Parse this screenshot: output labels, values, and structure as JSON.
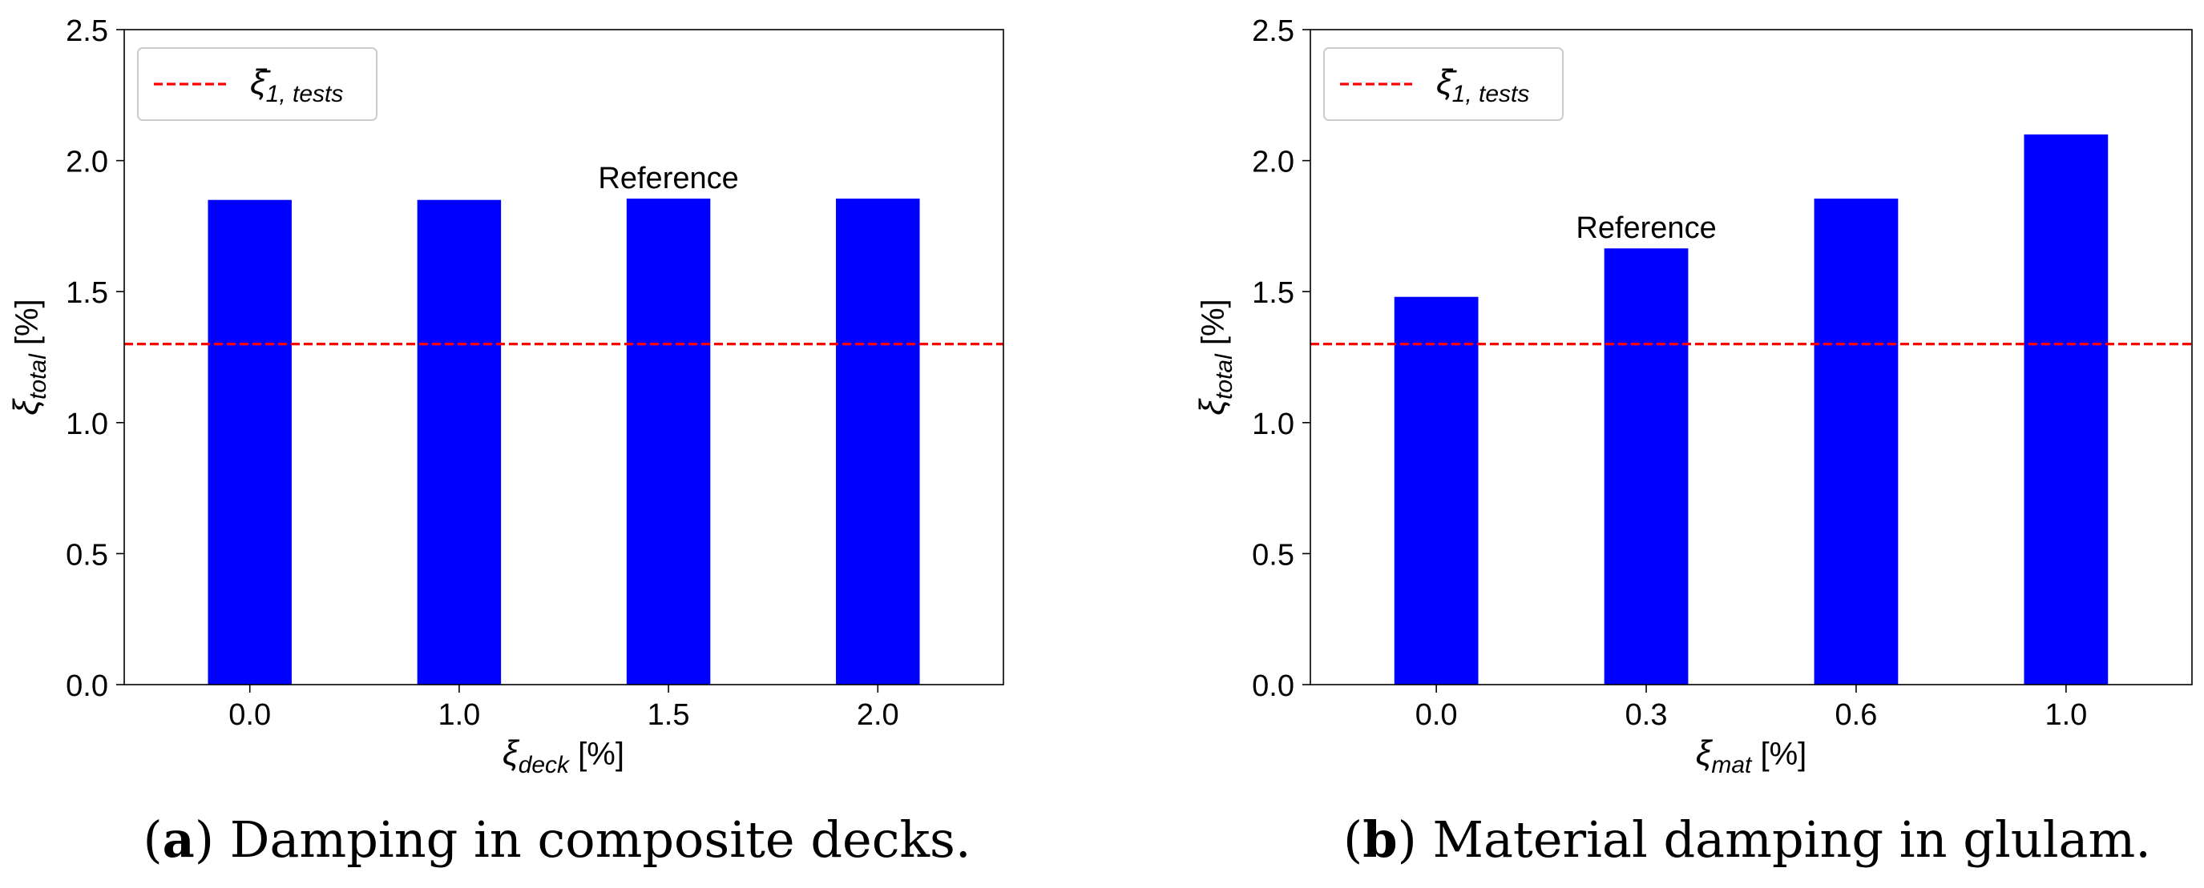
{
  "colors": {
    "bar": "#0000ff",
    "reference_line": "#ff0000",
    "axis": "#000000",
    "legend_border": "#cccccc"
  },
  "chart_data": [
    {
      "type": "bar",
      "panel": "a",
      "categories": [
        "0.0",
        "1.0",
        "1.5",
        "2.0"
      ],
      "values": [
        1.85,
        1.85,
        1.855,
        1.855
      ],
      "xlabel": {
        "main": "ξ",
        "sub": "deck",
        "unit": " [%]"
      },
      "ylabel": {
        "main": "ξ",
        "sub": "total",
        "unit": " [%]"
      },
      "ylim": [
        0,
        2.5
      ],
      "yticks": [
        "0.0",
        "0.5",
        "1.0",
        "1.5",
        "2.0",
        "2.5"
      ],
      "reference_line": {
        "value": 1.3,
        "style": "dashed"
      },
      "legend": {
        "main": "ξ̄",
        "sub": "1, tests",
        "placement": "top-left"
      },
      "annotation": {
        "text": "Reference",
        "category_index": 2
      },
      "caption": {
        "label": "a",
        "text": " Damping in composite decks."
      }
    },
    {
      "type": "bar",
      "panel": "b",
      "categories": [
        "0.0",
        "0.3",
        "0.6",
        "1.0"
      ],
      "values": [
        1.48,
        1.665,
        1.855,
        2.1
      ],
      "xlabel": {
        "main": "ξ",
        "sub": "mat",
        "unit": " [%]"
      },
      "ylabel": {
        "main": "ξ",
        "sub": "total",
        "unit": " [%]"
      },
      "ylim": [
        0,
        2.5
      ],
      "yticks": [
        "0.0",
        "0.5",
        "1.0",
        "1.5",
        "2.0",
        "2.5"
      ],
      "reference_line": {
        "value": 1.3,
        "style": "dashed"
      },
      "legend": {
        "main": "ξ̄",
        "sub": "1, tests",
        "placement": "top-left"
      },
      "annotation": {
        "text": "Reference",
        "category_index": 1
      },
      "caption": {
        "label": "b",
        "text": " Material damping in glulam."
      }
    }
  ]
}
